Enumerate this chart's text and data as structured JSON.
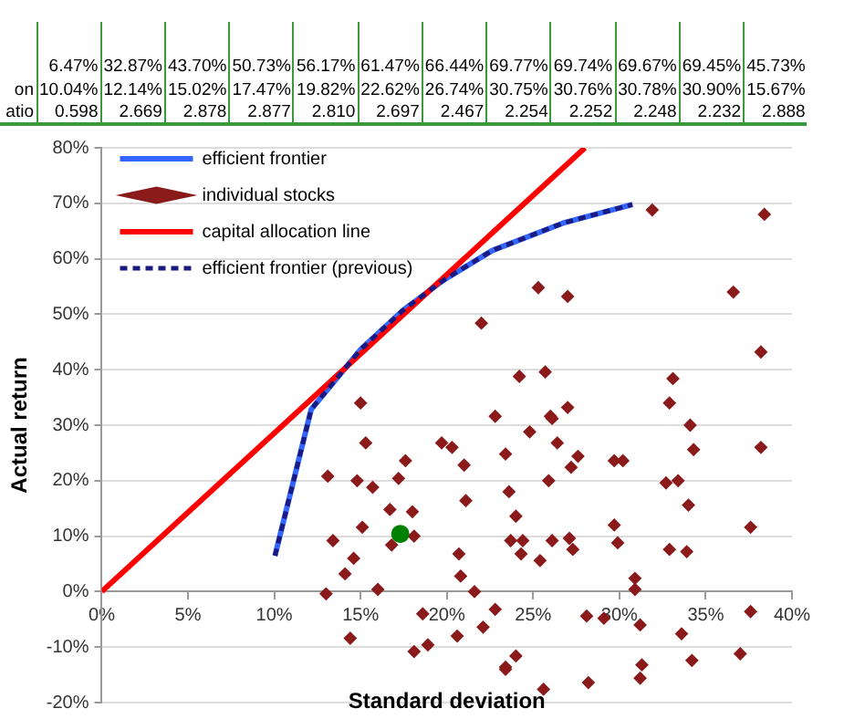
{
  "chart_data": {
    "type": "scatter",
    "annotations": [
      "6.47% 32.87% 43.70% 50.73% 56.17% 61.47% 66.44% 69.77% 69.74% 69.67% 69.45% 45.73%",
      "on 10.04% 12.14% 15.02% 17.47% 19.82% 22.62% 26.74% 30.75% 30.76% 30.78% 30.90% 15.67%",
      "atio 0.598 2.669 2.878 2.877 2.810 2.697 2.467 2.254 2.252 2.248 2.232 2.888"
    ],
    "xlabel": "Standard deviation",
    "ylabel": "Actual return",
    "xlim": [
      0,
      40
    ],
    "ylim": [
      -20,
      80
    ],
    "xticks": [
      {
        "value": 0,
        "label": "0%"
      },
      {
        "value": 5,
        "label": "5%"
      },
      {
        "value": 10,
        "label": "10%"
      },
      {
        "value": 15,
        "label": "15%"
      },
      {
        "value": 20,
        "label": "20%"
      },
      {
        "value": 25,
        "label": "25%"
      },
      {
        "value": 30,
        "label": "30%"
      },
      {
        "value": 35,
        "label": "35%"
      },
      {
        "value": 40,
        "label": "40%"
      }
    ],
    "yticks": [
      {
        "value": -20,
        "label": "-20%"
      },
      {
        "value": -10,
        "label": "-10%"
      },
      {
        "value": 0,
        "label": "0%"
      },
      {
        "value": 10,
        "label": "10%"
      },
      {
        "value": 20,
        "label": "20%"
      },
      {
        "value": 30,
        "label": "30%"
      },
      {
        "value": 40,
        "label": "40%"
      },
      {
        "value": 50,
        "label": "50%"
      },
      {
        "value": 60,
        "label": "60%"
      },
      {
        "value": 70,
        "label": "70%"
      },
      {
        "value": 80,
        "label": "80%"
      }
    ],
    "grid": "y",
    "legend": "top left",
    "series": [
      {
        "name": "efficient frontier",
        "type": "line",
        "color": "#3366ff",
        "marker": "none",
        "line_style": "solid",
        "x": [
          10.04,
          12.14,
          15.02,
          17.47,
          19.82,
          22.62,
          26.74,
          30.75
        ],
        "values": [
          6.47,
          32.87,
          43.7,
          50.73,
          56.17,
          61.47,
          66.44,
          69.77
        ]
      },
      {
        "name": "individual stocks",
        "type": "scatter",
        "color": "#8b1a1a",
        "marker": "diamond",
        "x": [
          31.9,
          38.4,
          25.3,
          27.0,
          22.0,
          36.6,
          38.2,
          24.2,
          25.7,
          33.1,
          32.9,
          27.0,
          22.8,
          26.0,
          15.0,
          13.1,
          15.3,
          17.6,
          19.7,
          20.3,
          21.0,
          14.8,
          15.7,
          17.2,
          21.1,
          16.7,
          18.0,
          13.4,
          15.1,
          16.8,
          18.1,
          14.6,
          14.1,
          20.7,
          20.8,
          16.0,
          13.0,
          21.6,
          18.6,
          20.6,
          22.1,
          14.4,
          18.1,
          18.9,
          23.4,
          23.6,
          23.7,
          23.4,
          24.8,
          26.1,
          26.4,
          27.6,
          27.2,
          25.9,
          29.7,
          30.2,
          34.1,
          34.3,
          38.2,
          32.7,
          33.4,
          34.0,
          24.0,
          29.7,
          37.6,
          24.4,
          26.1,
          27.1,
          27.3,
          29.9,
          24.3,
          25.4,
          32.9,
          33.9,
          30.9,
          30.9,
          22.8,
          28.1,
          29.1,
          31.2,
          37.6,
          33.6,
          24.0,
          23.4,
          34.2,
          37.0,
          31.3,
          31.2,
          28.2,
          25.6
        ],
        "values": [
          68.8,
          68.0,
          54.8,
          53.2,
          48.4,
          54.0,
          43.2,
          38.8,
          39.6,
          38.4,
          34.0,
          33.2,
          31.6,
          31.6,
          34.0,
          20.8,
          26.8,
          23.6,
          26.8,
          26.0,
          22.8,
          20.0,
          18.8,
          20.4,
          16.4,
          14.8,
          14.4,
          9.2,
          11.6,
          8.4,
          10.0,
          6.0,
          3.2,
          6.8,
          2.8,
          0.4,
          -0.4,
          0.0,
          -4.0,
          -8.0,
          -6.4,
          -8.4,
          -10.8,
          -9.6,
          24.8,
          18.0,
          9.2,
          -13.6,
          28.8,
          31.2,
          26.8,
          24.4,
          22.4,
          20.0,
          23.6,
          23.6,
          30.0,
          25.6,
          26.0,
          19.6,
          20.0,
          15.6,
          13.6,
          12.0,
          11.6,
          9.2,
          9.2,
          9.6,
          7.6,
          8.8,
          6.8,
          5.6,
          7.6,
          7.2,
          2.4,
          0.4,
          -3.2,
          -4.4,
          -4.8,
          -6.0,
          -3.6,
          -7.6,
          -11.6,
          -14.0,
          -12.4,
          -11.2,
          -13.2,
          -15.6,
          -16.4,
          -17.6
        ]
      },
      {
        "name": "capital allocation line",
        "type": "line",
        "color": "#ff0000",
        "marker": "none",
        "line_style": "solid",
        "x": [
          0,
          28
        ],
        "values": [
          0,
          80
        ]
      },
      {
        "name": "efficient frontier (previous)",
        "type": "line",
        "color": "#1a1a80",
        "marker": "none",
        "line_style": "dashed",
        "x": [
          10.04,
          12.14,
          15.02,
          17.47,
          19.82,
          22.62,
          26.74,
          30.75
        ],
        "values": [
          6.47,
          32.87,
          43.7,
          50.73,
          56.17,
          61.47,
          66.44,
          69.77
        ]
      },
      {
        "type": "scatter",
        "color": "#008000",
        "marker": "circle",
        "x": [
          17.3
        ],
        "values": [
          10.4
        ]
      }
    ]
  }
}
